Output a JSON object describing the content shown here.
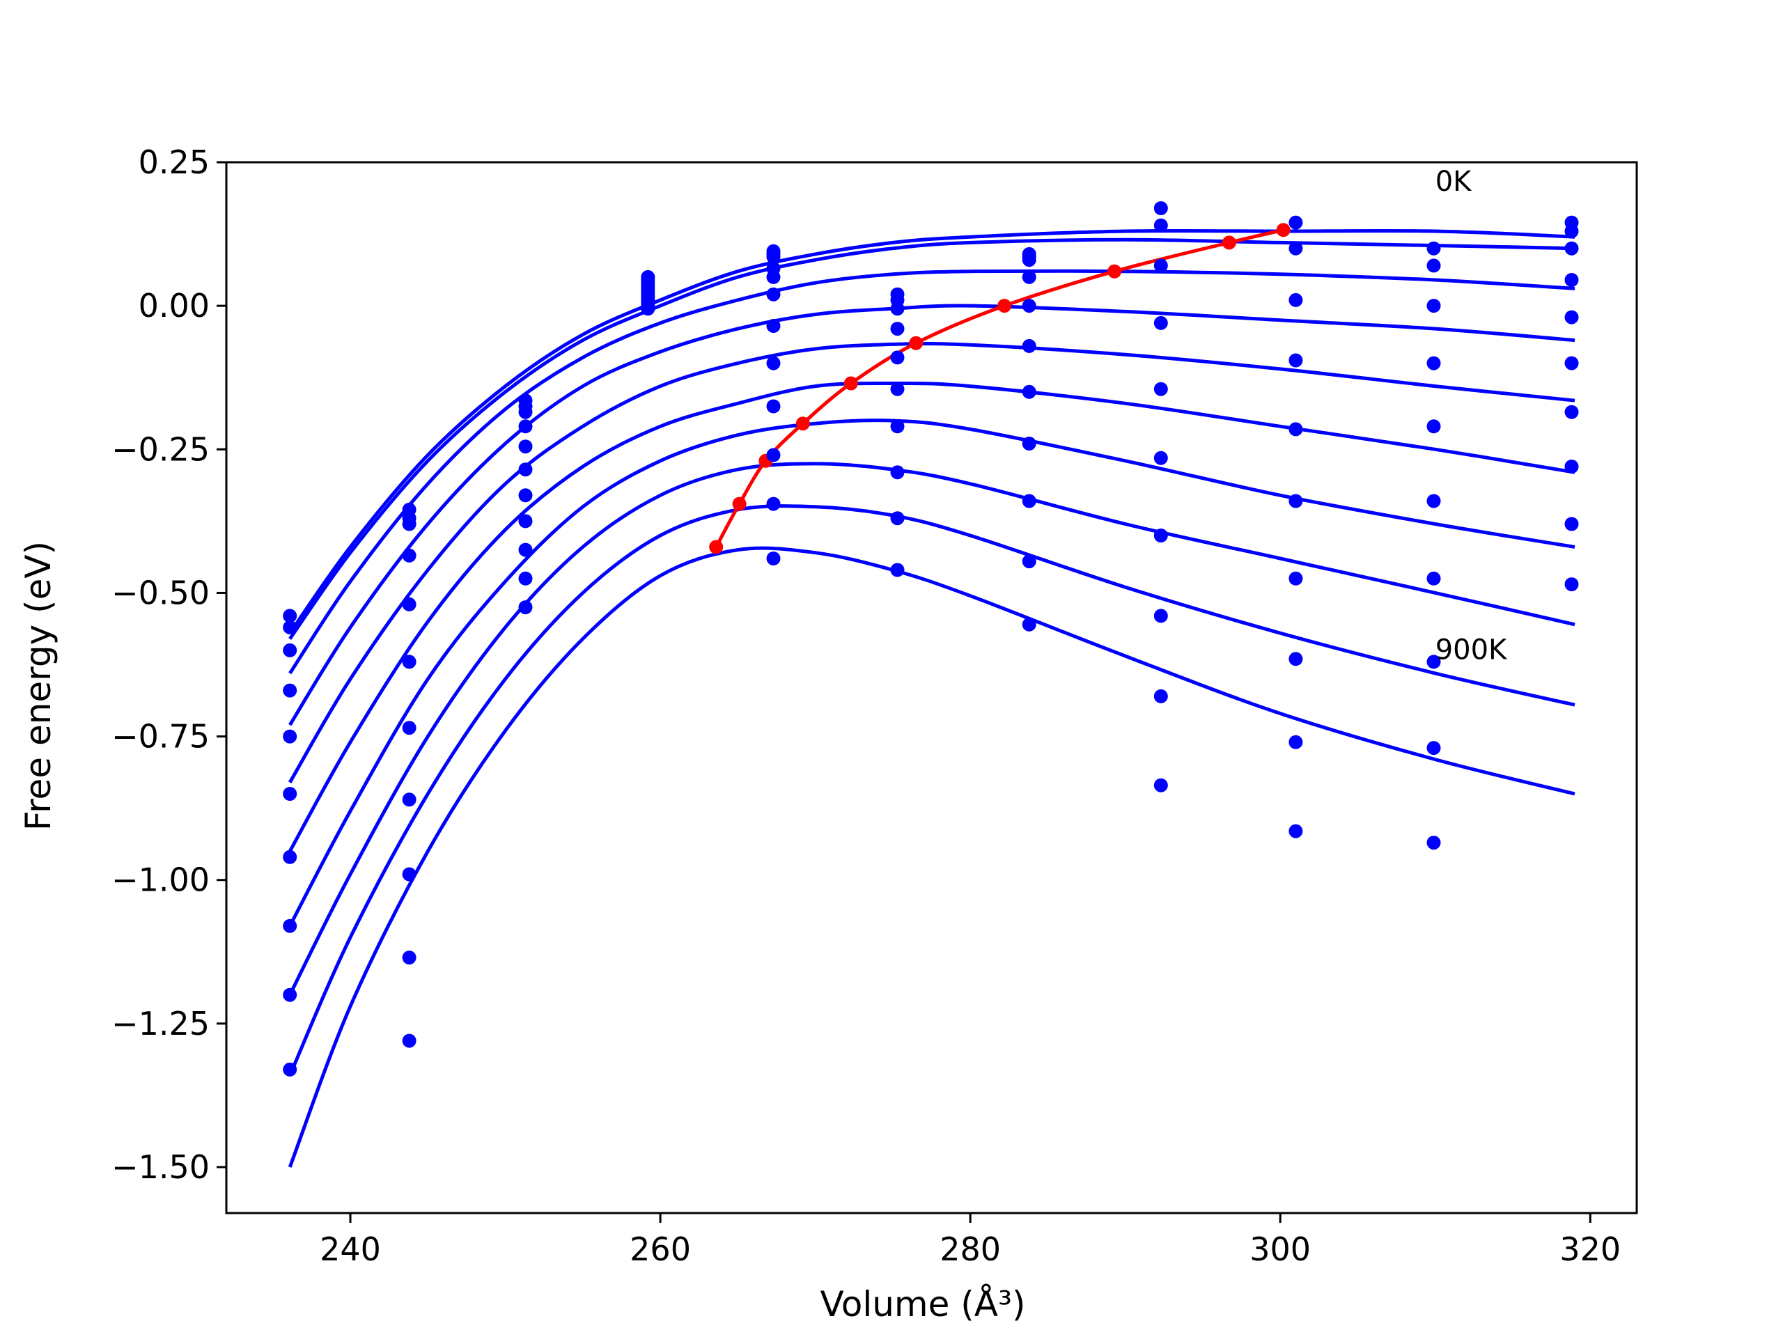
{
  "chart_data": {
    "type": "line",
    "title": "",
    "xlabel": "Volume (Å³)",
    "ylabel": "Free energy (eV)",
    "xlim": [
      232,
      323
    ],
    "ylim": [
      -1.58,
      0.25
    ],
    "xticks": [
      240,
      260,
      280,
      300,
      320
    ],
    "xtick_labels": [
      "240",
      "260",
      "280",
      "300",
      "320"
    ],
    "yticks": [
      0.25,
      0.0,
      -0.25,
      -0.5,
      -0.75,
      -1.0,
      -1.25,
      -1.5
    ],
    "ytick_labels": [
      "0.25",
      "0.00",
      "−0.25",
      "−0.50",
      "−0.75",
      "−1.00",
      "−1.25",
      "−1.50"
    ],
    "grid": false,
    "annotations": [
      {
        "text": "0K",
        "x": 310,
        "y": 0.2
      },
      {
        "text": "900K",
        "x": 310,
        "y": -0.615
      }
    ],
    "colors": {
      "curves": "#0000ff",
      "points": "#0000ff",
      "minimum": "#ff0000",
      "axes": "#000000"
    },
    "fit_curves": [
      {
        "x": [
          236.1,
          240,
          245,
          250,
          255,
          260,
          265,
          270,
          275,
          280,
          290,
          300,
          310,
          319
        ],
        "y": [
          -0.57,
          -0.42,
          -0.26,
          -0.14,
          -0.05,
          0.01,
          0.06,
          0.09,
          0.11,
          0.12,
          0.13,
          0.13,
          0.13,
          0.12
        ]
      },
      {
        "x": [
          236.1,
          240,
          245,
          250,
          255,
          260,
          265,
          270,
          275,
          280,
          290,
          300,
          310,
          319
        ],
        "y": [
          -0.58,
          -0.43,
          -0.27,
          -0.15,
          -0.06,
          0.0,
          0.05,
          0.08,
          0.1,
          0.11,
          0.115,
          0.11,
          0.105,
          0.1
        ]
      },
      {
        "x": [
          236.1,
          240,
          245,
          250,
          255,
          260,
          265,
          270,
          275,
          280,
          290,
          300,
          310,
          319
        ],
        "y": [
          -0.64,
          -0.48,
          -0.31,
          -0.18,
          -0.09,
          -0.03,
          0.01,
          0.04,
          0.055,
          0.06,
          0.06,
          0.055,
          0.045,
          0.03
        ]
      },
      {
        "x": [
          236.1,
          240,
          245,
          250,
          255,
          260,
          265,
          270,
          275,
          280,
          290,
          300,
          310,
          319
        ],
        "y": [
          -0.73,
          -0.56,
          -0.38,
          -0.24,
          -0.14,
          -0.08,
          -0.04,
          -0.015,
          -0.005,
          0.0,
          -0.01,
          -0.025,
          -0.04,
          -0.06
        ]
      },
      {
        "x": [
          236.1,
          240,
          245,
          250,
          255,
          260,
          265,
          270,
          275,
          280,
          290,
          300,
          310,
          319
        ],
        "y": [
          -0.83,
          -0.65,
          -0.46,
          -0.31,
          -0.21,
          -0.14,
          -0.1,
          -0.075,
          -0.067,
          -0.068,
          -0.085,
          -0.11,
          -0.14,
          -0.165
        ]
      },
      {
        "x": [
          236.1,
          240,
          245,
          250,
          255,
          260,
          265,
          270,
          275,
          280,
          290,
          300,
          310,
          319
        ],
        "y": [
          -0.95,
          -0.76,
          -0.55,
          -0.39,
          -0.28,
          -0.21,
          -0.17,
          -0.14,
          -0.135,
          -0.14,
          -0.17,
          -0.21,
          -0.25,
          -0.29
        ]
      },
      {
        "x": [
          236.1,
          240,
          245,
          250,
          255,
          260,
          265,
          270,
          275,
          280,
          290,
          300,
          310,
          319
        ],
        "y": [
          -1.08,
          -0.88,
          -0.65,
          -0.48,
          -0.35,
          -0.27,
          -0.225,
          -0.205,
          -0.2,
          -0.215,
          -0.27,
          -0.33,
          -0.38,
          -0.42
        ]
      },
      {
        "x": [
          236.1,
          240,
          245,
          250,
          255,
          260,
          265,
          270,
          275,
          280,
          290,
          300,
          310,
          319
        ],
        "y": [
          -1.2,
          -0.99,
          -0.75,
          -0.56,
          -0.42,
          -0.33,
          -0.285,
          -0.275,
          -0.285,
          -0.31,
          -0.38,
          -0.44,
          -0.5,
          -0.555
        ]
      },
      {
        "x": [
          236.1,
          240,
          245,
          250,
          255,
          260,
          265,
          270,
          275,
          280,
          290,
          300,
          310,
          319
        ],
        "y": [
          -1.34,
          -1.1,
          -0.85,
          -0.65,
          -0.5,
          -0.4,
          -0.355,
          -0.35,
          -0.365,
          -0.4,
          -0.49,
          -0.57,
          -0.64,
          -0.695
        ]
      },
      {
        "x": [
          236.1,
          240,
          245,
          250,
          255,
          260,
          265,
          270,
          275,
          280,
          290,
          300,
          310,
          319
        ],
        "y": [
          -1.5,
          -1.22,
          -0.95,
          -0.74,
          -0.58,
          -0.47,
          -0.425,
          -0.43,
          -0.46,
          -0.505,
          -0.61,
          -0.71,
          -0.79,
          -0.85
        ]
      }
    ],
    "points": [
      {
        "x": 236.1,
        "y": [
          -0.54,
          -0.56,
          -0.6,
          -0.67,
          -0.75,
          -0.85,
          -0.96,
          -1.08,
          -1.2,
          -1.33
        ]
      },
      {
        "x": 243.8,
        "y": [
          -0.355,
          -0.37,
          -0.38,
          -0.435,
          -0.52,
          -0.62,
          -0.735,
          -0.86,
          -0.99,
          -1.135,
          -1.28
        ]
      },
      {
        "x": 251.3,
        "y": [
          -0.165,
          -0.175,
          -0.185,
          -0.21,
          -0.245,
          -0.285,
          -0.33,
          -0.375,
          -0.425,
          -0.475,
          -0.525
        ]
      },
      {
        "x": 259.2,
        "y": [
          0.05,
          0.045,
          0.04,
          0.035,
          0.03,
          0.025,
          0.02,
          0.015,
          0.01,
          0.005,
          0.0,
          -0.005
        ]
      },
      {
        "x": 267.3,
        "y": [
          0.095,
          0.09,
          0.085,
          0.065,
          0.05,
          0.02,
          -0.035,
          -0.1,
          -0.175,
          -0.26,
          -0.345,
          -0.44
        ]
      },
      {
        "x": 275.3,
        "y": [
          0.02,
          0.01,
          -0.005,
          -0.04,
          -0.09,
          -0.145,
          -0.21,
          -0.29,
          -0.37,
          -0.46
        ]
      },
      {
        "x": 283.8,
        "y": [
          0.09,
          0.085,
          0.08,
          0.05,
          0.0,
          -0.07,
          -0.15,
          -0.24,
          -0.34,
          -0.445,
          -0.555
        ]
      },
      {
        "x": 292.3,
        "y": [
          0.17,
          0.14,
          0.07,
          -0.03,
          -0.145,
          -0.265,
          -0.4,
          -0.54,
          -0.68,
          -0.835
        ]
      },
      {
        "x": 301.0,
        "y": [
          0.145,
          0.1,
          0.01,
          -0.095,
          -0.215,
          -0.34,
          -0.475,
          -0.615,
          -0.76,
          -0.915
        ]
      },
      {
        "x": 309.9,
        "y": [
          0.1,
          0.07,
          0.0,
          -0.1,
          -0.21,
          -0.34,
          -0.475,
          -0.62,
          -0.77,
          -0.935
        ]
      },
      {
        "x": 318.8,
        "y": [
          0.145,
          0.13,
          0.1,
          0.045,
          -0.02,
          -0.1,
          -0.185,
          -0.28,
          -0.38,
          -0.485
        ]
      }
    ],
    "minimum_curve": {
      "x": [
        263.6,
        265.1,
        266.8,
        269.2,
        272.3,
        276.5,
        282.2,
        289.3,
        296.7,
        300.2
      ],
      "y": [
        -0.42,
        -0.345,
        -0.27,
        -0.205,
        -0.135,
        -0.065,
        0.0,
        0.06,
        0.11,
        0.132
      ]
    }
  }
}
